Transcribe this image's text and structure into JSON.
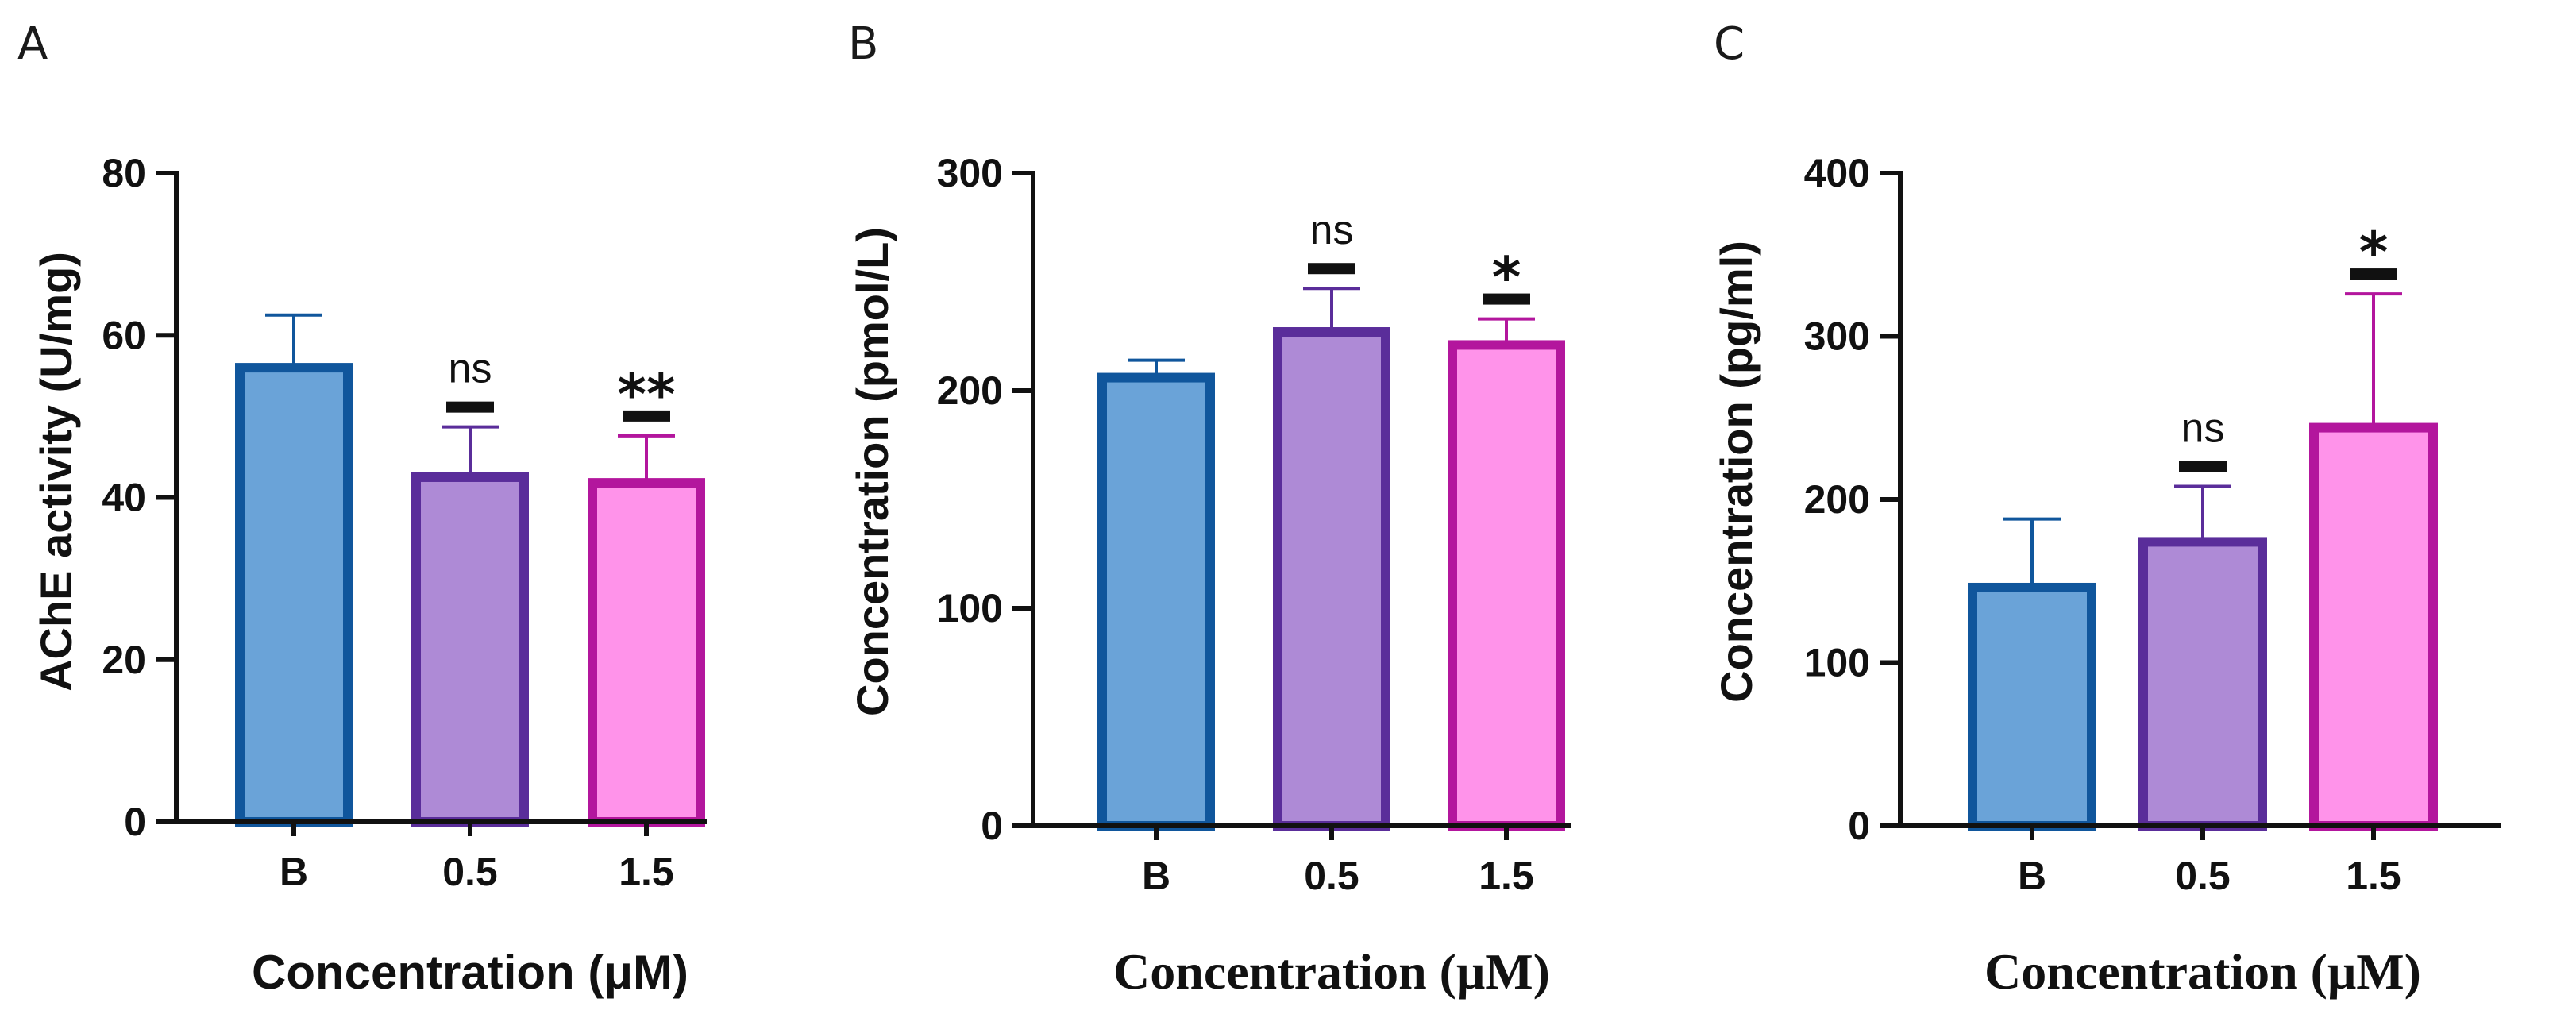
{
  "colors": {
    "B": {
      "fill": "#6aa3d8",
      "stroke": "#10569c"
    },
    "0.5": {
      "fill": "#ae8ad6",
      "stroke": "#5a2d9a"
    },
    "1.5": {
      "fill": "#ff93ea",
      "stroke": "#b3169d"
    },
    "axis": "#111111"
  },
  "chart_data": [
    {
      "panel": "A",
      "type": "bar",
      "categories": [
        "B",
        "0.5",
        "1.5"
      ],
      "values": [
        56,
        42.5,
        41.8
      ],
      "errors": [
        6.5,
        6.2,
        5.8
      ],
      "significance": [
        "",
        "ns",
        "**"
      ],
      "ylabel": "AChE activity (U/mg)",
      "xlabel": "Concentration (μM)",
      "ylim": [
        0,
        80
      ],
      "yticks": [
        0,
        20,
        40,
        60,
        80
      ]
    },
    {
      "panel": "B",
      "type": "bar",
      "categories": [
        "B",
        "0.5",
        "1.5"
      ],
      "values": [
        206,
        227,
        221
      ],
      "errors": [
        8,
        20,
        12
      ],
      "significance": [
        "",
        "ns",
        "*"
      ],
      "ylabel": "Concentration (pmol/L)",
      "xlabel": "Concentration (μM)",
      "ylim": [
        0,
        300
      ],
      "yticks": [
        0,
        100,
        200,
        300
      ]
    },
    {
      "panel": "C",
      "type": "bar",
      "categories": [
        "B",
        "0.5",
        "1.5"
      ],
      "values": [
        146,
        174,
        244
      ],
      "errors": [
        42,
        34,
        82
      ],
      "significance": [
        "",
        "ns",
        "*"
      ],
      "ylabel": "Concentration (pg/ml)",
      "xlabel": "Concentration (μM)",
      "ylim": [
        0,
        400
      ],
      "yticks": [
        0,
        100,
        200,
        300,
        400
      ]
    }
  ]
}
